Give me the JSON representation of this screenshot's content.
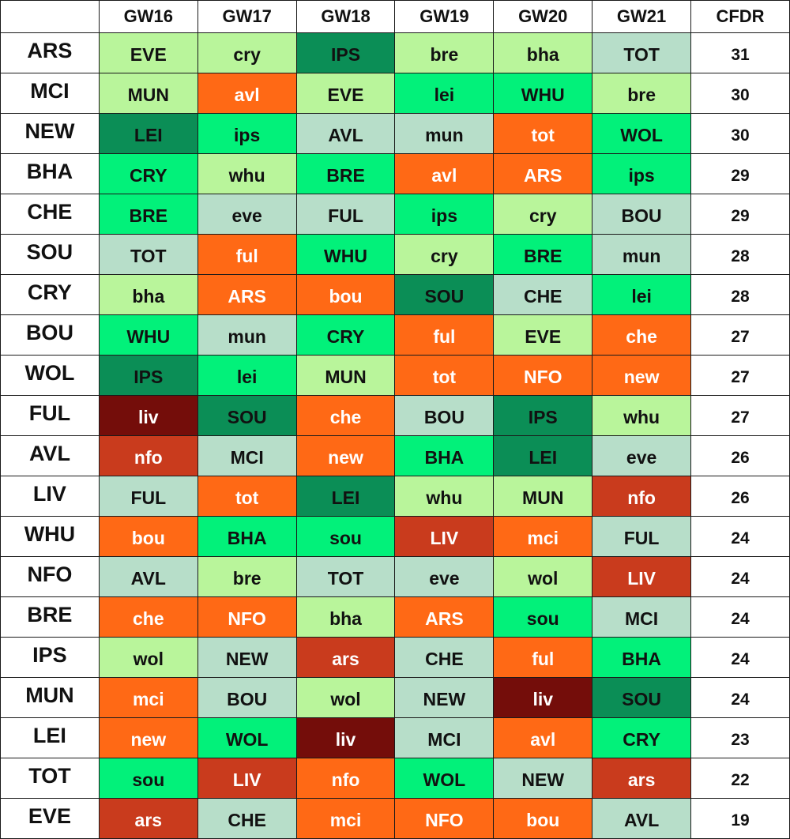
{
  "header": [
    "",
    "GW16",
    "GW17",
    "GW18",
    "GW19",
    "GW20",
    "GW21",
    "CFDR"
  ],
  "palette": {
    "1": "#b9f59b",
    "2": "#02f17a",
    "3": "#0b8e56",
    "4": "#b7dec9",
    "5": "#ff6915",
    "6": "#c93b1d",
    "7": "#740d0a"
  },
  "rows": [
    {
      "team": "ARS",
      "fixtures": [
        {
          "opp": "EVE",
          "d": 1
        },
        {
          "opp": "cry",
          "d": 1
        },
        {
          "opp": "IPS",
          "d": 3
        },
        {
          "opp": "bre",
          "d": 1
        },
        {
          "opp": "bha",
          "d": 1
        },
        {
          "opp": "TOT",
          "d": 4
        }
      ],
      "cfdr": "31"
    },
    {
      "team": "MCI",
      "fixtures": [
        {
          "opp": "MUN",
          "d": 1
        },
        {
          "opp": "avl",
          "d": 5
        },
        {
          "opp": "EVE",
          "d": 1
        },
        {
          "opp": "lei",
          "d": 2
        },
        {
          "opp": "WHU",
          "d": 2
        },
        {
          "opp": "bre",
          "d": 1
        }
      ],
      "cfdr": "30"
    },
    {
      "team": "NEW",
      "fixtures": [
        {
          "opp": "LEI",
          "d": 3
        },
        {
          "opp": "ips",
          "d": 2
        },
        {
          "opp": "AVL",
          "d": 4
        },
        {
          "opp": "mun",
          "d": 4
        },
        {
          "opp": "tot",
          "d": 5
        },
        {
          "opp": "WOL",
          "d": 2
        }
      ],
      "cfdr": "30"
    },
    {
      "team": "BHA",
      "fixtures": [
        {
          "opp": "CRY",
          "d": 2
        },
        {
          "opp": "whu",
          "d": 1
        },
        {
          "opp": "BRE",
          "d": 2
        },
        {
          "opp": "avl",
          "d": 5
        },
        {
          "opp": "ARS",
          "d": 5
        },
        {
          "opp": "ips",
          "d": 2
        }
      ],
      "cfdr": "29"
    },
    {
      "team": "CHE",
      "fixtures": [
        {
          "opp": "BRE",
          "d": 2
        },
        {
          "opp": "eve",
          "d": 4
        },
        {
          "opp": "FUL",
          "d": 4
        },
        {
          "opp": "ips",
          "d": 2
        },
        {
          "opp": "cry",
          "d": 1
        },
        {
          "opp": "BOU",
          "d": 4
        }
      ],
      "cfdr": "29"
    },
    {
      "team": "SOU",
      "fixtures": [
        {
          "opp": "TOT",
          "d": 4
        },
        {
          "opp": "ful",
          "d": 5
        },
        {
          "opp": "WHU",
          "d": 2
        },
        {
          "opp": "cry",
          "d": 1
        },
        {
          "opp": "BRE",
          "d": 2
        },
        {
          "opp": "mun",
          "d": 4
        }
      ],
      "cfdr": "28"
    },
    {
      "team": "CRY",
      "fixtures": [
        {
          "opp": "bha",
          "d": 1
        },
        {
          "opp": "ARS",
          "d": 5
        },
        {
          "opp": "bou",
          "d": 5
        },
        {
          "opp": "SOU",
          "d": 3
        },
        {
          "opp": "CHE",
          "d": 4
        },
        {
          "opp": "lei",
          "d": 2
        }
      ],
      "cfdr": "28"
    },
    {
      "team": "BOU",
      "fixtures": [
        {
          "opp": "WHU",
          "d": 2
        },
        {
          "opp": "mun",
          "d": 4
        },
        {
          "opp": "CRY",
          "d": 2
        },
        {
          "opp": "ful",
          "d": 5
        },
        {
          "opp": "EVE",
          "d": 1
        },
        {
          "opp": "che",
          "d": 5
        }
      ],
      "cfdr": "27"
    },
    {
      "team": "WOL",
      "fixtures": [
        {
          "opp": "IPS",
          "d": 3
        },
        {
          "opp": "lei",
          "d": 2
        },
        {
          "opp": "MUN",
          "d": 1
        },
        {
          "opp": "tot",
          "d": 5
        },
        {
          "opp": "NFO",
          "d": 5
        },
        {
          "opp": "new",
          "d": 5
        }
      ],
      "cfdr": "27"
    },
    {
      "team": "FUL",
      "fixtures": [
        {
          "opp": "liv",
          "d": 7
        },
        {
          "opp": "SOU",
          "d": 3
        },
        {
          "opp": "che",
          "d": 5
        },
        {
          "opp": "BOU",
          "d": 4
        },
        {
          "opp": "IPS",
          "d": 3
        },
        {
          "opp": "whu",
          "d": 1
        }
      ],
      "cfdr": "27"
    },
    {
      "team": "AVL",
      "fixtures": [
        {
          "opp": "nfo",
          "d": 6
        },
        {
          "opp": "MCI",
          "d": 4
        },
        {
          "opp": "new",
          "d": 5
        },
        {
          "opp": "BHA",
          "d": 2
        },
        {
          "opp": "LEI",
          "d": 3
        },
        {
          "opp": "eve",
          "d": 4
        }
      ],
      "cfdr": "26"
    },
    {
      "team": "LIV",
      "fixtures": [
        {
          "opp": "FUL",
          "d": 4
        },
        {
          "opp": "tot",
          "d": 5
        },
        {
          "opp": "LEI",
          "d": 3
        },
        {
          "opp": "whu",
          "d": 1
        },
        {
          "opp": "MUN",
          "d": 1
        },
        {
          "opp": "nfo",
          "d": 6
        }
      ],
      "cfdr": "26"
    },
    {
      "team": "WHU",
      "fixtures": [
        {
          "opp": "bou",
          "d": 5
        },
        {
          "opp": "BHA",
          "d": 2
        },
        {
          "opp": "sou",
          "d": 2
        },
        {
          "opp": "LIV",
          "d": 6
        },
        {
          "opp": "mci",
          "d": 5
        },
        {
          "opp": "FUL",
          "d": 4
        }
      ],
      "cfdr": "24"
    },
    {
      "team": "NFO",
      "fixtures": [
        {
          "opp": "AVL",
          "d": 4
        },
        {
          "opp": "bre",
          "d": 1
        },
        {
          "opp": "TOT",
          "d": 4
        },
        {
          "opp": "eve",
          "d": 4
        },
        {
          "opp": "wol",
          "d": 1
        },
        {
          "opp": "LIV",
          "d": 6
        }
      ],
      "cfdr": "24"
    },
    {
      "team": "BRE",
      "fixtures": [
        {
          "opp": "che",
          "d": 5
        },
        {
          "opp": "NFO",
          "d": 5
        },
        {
          "opp": "bha",
          "d": 1
        },
        {
          "opp": "ARS",
          "d": 5
        },
        {
          "opp": "sou",
          "d": 2
        },
        {
          "opp": "MCI",
          "d": 4
        }
      ],
      "cfdr": "24"
    },
    {
      "team": "IPS",
      "fixtures": [
        {
          "opp": "wol",
          "d": 1
        },
        {
          "opp": "NEW",
          "d": 4
        },
        {
          "opp": "ars",
          "d": 6
        },
        {
          "opp": "CHE",
          "d": 4
        },
        {
          "opp": "ful",
          "d": 5
        },
        {
          "opp": "BHA",
          "d": 2
        }
      ],
      "cfdr": "24"
    },
    {
      "team": "MUN",
      "fixtures": [
        {
          "opp": "mci",
          "d": 5
        },
        {
          "opp": "BOU",
          "d": 4
        },
        {
          "opp": "wol",
          "d": 1
        },
        {
          "opp": "NEW",
          "d": 4
        },
        {
          "opp": "liv",
          "d": 7
        },
        {
          "opp": "SOU",
          "d": 3
        }
      ],
      "cfdr": "24"
    },
    {
      "team": "LEI",
      "fixtures": [
        {
          "opp": "new",
          "d": 5
        },
        {
          "opp": "WOL",
          "d": 2
        },
        {
          "opp": "liv",
          "d": 7
        },
        {
          "opp": "MCI",
          "d": 4
        },
        {
          "opp": "avl",
          "d": 5
        },
        {
          "opp": "CRY",
          "d": 2
        }
      ],
      "cfdr": "23"
    },
    {
      "team": "TOT",
      "fixtures": [
        {
          "opp": "sou",
          "d": 2
        },
        {
          "opp": "LIV",
          "d": 6
        },
        {
          "opp": "nfo",
          "d": 5
        },
        {
          "opp": "WOL",
          "d": 2
        },
        {
          "opp": "NEW",
          "d": 4
        },
        {
          "opp": "ars",
          "d": 6
        }
      ],
      "cfdr": "22"
    },
    {
      "team": "EVE",
      "fixtures": [
        {
          "opp": "ars",
          "d": 6
        },
        {
          "opp": "CHE",
          "d": 4
        },
        {
          "opp": "mci",
          "d": 5
        },
        {
          "opp": "NFO",
          "d": 5
        },
        {
          "opp": "bou",
          "d": 5
        },
        {
          "opp": "AVL",
          "d": 4
        }
      ],
      "cfdr": "19"
    }
  ]
}
